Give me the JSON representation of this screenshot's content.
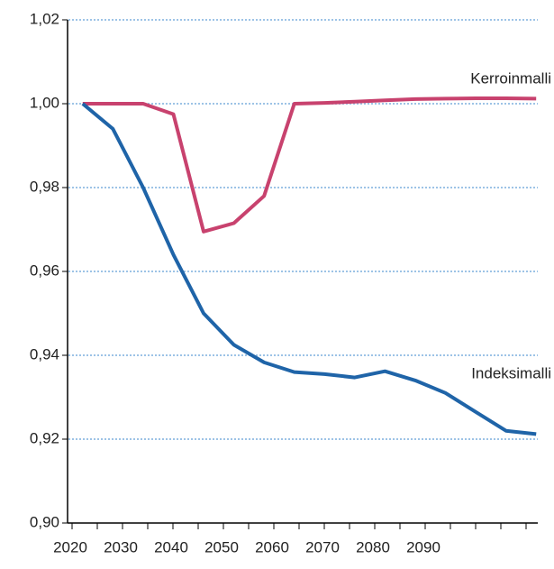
{
  "chart_data": {
    "type": "line",
    "categories": [
      null,
      null,
      null,
      null,
      null,
      null,
      null,
      null,
      null,
      null,
      null,
      null,
      null,
      null,
      null,
      null
    ],
    "x_labels": [
      "2020",
      "2030",
      "2040",
      "2050",
      "2060",
      "2070",
      "2080",
      "2090"
    ],
    "series": [
      {
        "name": "Kerroinmalli",
        "color": "#c8426e",
        "values": [
          1.0,
          1.0,
          1.0,
          0.9975,
          0.9695,
          0.9715,
          0.978,
          1.0,
          1.0002,
          1.0005,
          1.0008,
          1.0011,
          1.0012,
          1.0013,
          1.0013,
          1.0012
        ]
      },
      {
        "name": "Indeksimalli",
        "color": "#1f64a8",
        "values": [
          1.0,
          0.994,
          0.98,
          0.964,
          0.95,
          0.9425,
          0.9383,
          0.936,
          0.9355,
          0.9347,
          0.9362,
          0.934,
          0.931,
          0.9265,
          0.922,
          0.9212
        ]
      }
    ],
    "ylim": [
      0.9,
      1.02
    ],
    "yticks": [
      {
        "value": 0.9,
        "label": "0,90"
      },
      {
        "value": 0.92,
        "label": "0,92"
      },
      {
        "value": 0.94,
        "label": "0,94"
      },
      {
        "value": 0.96,
        "label": "0,96"
      },
      {
        "value": 0.98,
        "label": "0,98"
      },
      {
        "value": 1.0,
        "label": "1,00"
      },
      {
        "value": 1.02,
        "label": "1,02"
      }
    ],
    "grid": true
  }
}
